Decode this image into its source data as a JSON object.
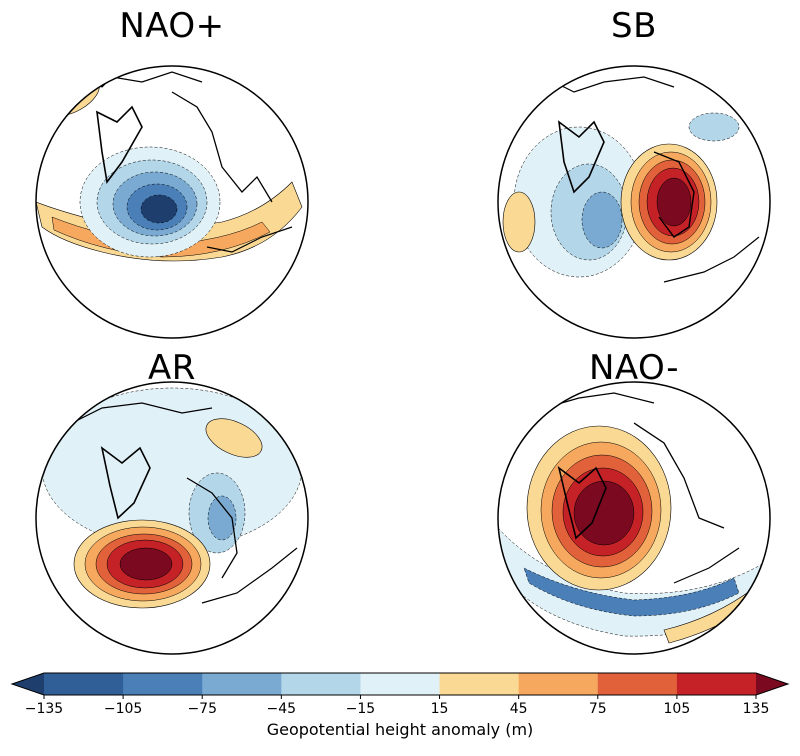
{
  "chart_data": {
    "type": "heatmap",
    "description_kind": "polar-projection geopotential height anomaly composites",
    "panels": [
      {
        "title": "NAO+",
        "anomalies": [
          {
            "feature": "low",
            "value": -135
          },
          {
            "feature": "high-band",
            "value": 45
          },
          {
            "feature": "high",
            "value": 15
          }
        ]
      },
      {
        "title": "SB",
        "anomalies": [
          {
            "feature": "high",
            "value": 135
          },
          {
            "feature": "low",
            "value": -75
          },
          {
            "feature": "low",
            "value": -45
          }
        ]
      },
      {
        "title": "AR",
        "anomalies": [
          {
            "feature": "high",
            "value": 135
          },
          {
            "feature": "low",
            "value": -75
          },
          {
            "feature": "high",
            "value": 15
          }
        ]
      },
      {
        "title": "NAO-",
        "anomalies": [
          {
            "feature": "high",
            "value": 135
          },
          {
            "feature": "low-band",
            "value": -105
          },
          {
            "feature": "high-band",
            "value": 15
          }
        ]
      }
    ],
    "colorbar": {
      "label": "Geopotential height anomaly (m)",
      "ticks": [
        -135,
        -105,
        -75,
        -45,
        -15,
        15,
        45,
        75,
        105,
        135
      ],
      "tick_labels": [
        "−135",
        "−105",
        "−75",
        "−45",
        "−15",
        "15",
        "45",
        "75",
        "105",
        "135"
      ],
      "colors": [
        "#2f5f96",
        "#4a7fb8",
        "#7aaad1",
        "#b3d6e9",
        "#e1f1f8",
        "#ffffff",
        "#fad995",
        "#f6a85e",
        "#e1613b",
        "#c42227",
        "#7b0a21"
      ],
      "extend": "both"
    }
  }
}
